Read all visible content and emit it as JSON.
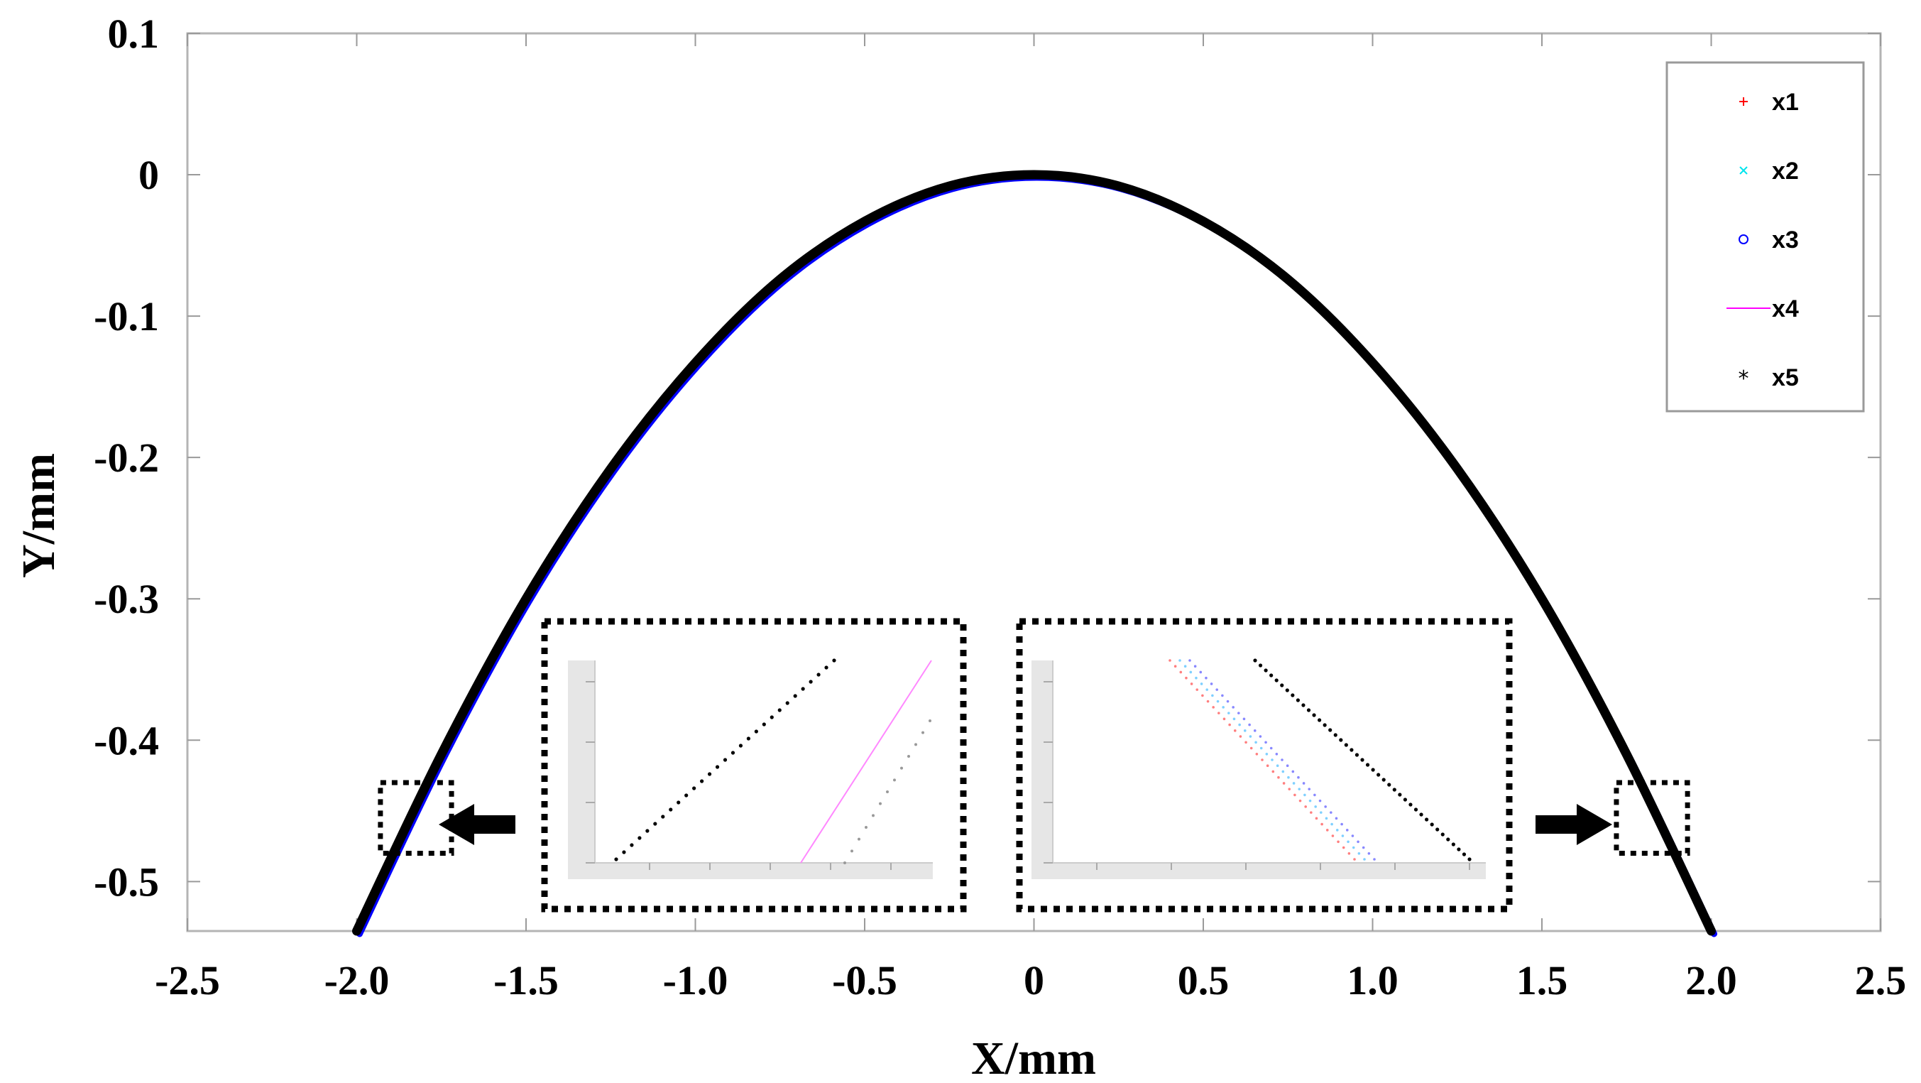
{
  "chart_data": {
    "type": "scatter",
    "title": "",
    "xlabel": "X/mm",
    "ylabel": "Y/mm",
    "xlim": [
      -2.5,
      2.5
    ],
    "ylim": [
      -0.535,
      0.1
    ],
    "x_ticks": [
      -2.5,
      -2.0,
      -1.5,
      -1.0,
      -0.5,
      0,
      0.5,
      1.0,
      1.5,
      2.0,
      2.5
    ],
    "x_tick_labels": [
      "-2.5",
      "-2.0",
      "-1.5",
      "-1.0",
      "-0.5",
      "0",
      "0.5",
      "1.0",
      "1.5",
      "2.0",
      "2.5"
    ],
    "y_ticks": [
      0.1,
      0,
      -0.1,
      -0.2,
      -0.3,
      -0.4,
      -0.5
    ],
    "y_tick_labels": [
      "0.1",
      "0",
      "-0.1",
      "-0.2",
      "-0.3",
      "-0.4",
      "-0.5"
    ],
    "grid": false,
    "legend_position": "top-right",
    "series": [
      {
        "name": "x1",
        "marker": "+",
        "color": "#ff0000",
        "x": [
          -2.0,
          -1.75,
          -1.5,
          -1.25,
          -1.0,
          -0.75,
          -0.5,
          -0.25,
          0,
          0.25,
          0.5,
          0.75,
          1.0,
          1.25,
          1.5,
          1.75,
          2.0
        ],
        "y": [
          -0.535,
          -0.41,
          -0.3,
          -0.208,
          -0.133,
          -0.074,
          -0.033,
          -0.008,
          0,
          -0.008,
          -0.033,
          -0.074,
          -0.133,
          -0.208,
          -0.3,
          -0.41,
          -0.535
        ]
      },
      {
        "name": "x2",
        "marker": "x",
        "color": "#00e5ee",
        "x": [
          -2.0,
          -1.75,
          -1.5,
          -1.25,
          -1.0,
          -0.75,
          -0.5,
          -0.25,
          0,
          0.25,
          0.5,
          0.75,
          1.0,
          1.25,
          1.5,
          1.75,
          2.0
        ],
        "y": [
          -0.535,
          -0.41,
          -0.3,
          -0.208,
          -0.133,
          -0.074,
          -0.033,
          -0.008,
          0,
          -0.008,
          -0.033,
          -0.074,
          -0.133,
          -0.208,
          -0.3,
          -0.41,
          -0.535
        ]
      },
      {
        "name": "x3",
        "marker": "o",
        "color": "#0000ff",
        "x": [
          -2.0,
          -1.75,
          -1.5,
          -1.25,
          -1.0,
          -0.75,
          -0.5,
          -0.25,
          0,
          0.25,
          0.5,
          0.75,
          1.0,
          1.25,
          1.5,
          1.75,
          2.0
        ],
        "y": [
          -0.535,
          -0.41,
          -0.3,
          -0.208,
          -0.133,
          -0.074,
          -0.033,
          -0.008,
          0,
          -0.008,
          -0.033,
          -0.074,
          -0.133,
          -0.208,
          -0.3,
          -0.41,
          -0.535
        ]
      },
      {
        "name": "x4",
        "marker": "-",
        "color": "#ff00ff",
        "x": [
          -2.0,
          -1.75,
          -1.5,
          -1.25,
          -1.0,
          -0.75,
          -0.5,
          -0.25,
          0,
          0.25,
          0.5,
          0.75,
          1.0,
          1.25,
          1.5,
          1.75,
          2.0
        ],
        "y": [
          -0.535,
          -0.41,
          -0.3,
          -0.208,
          -0.133,
          -0.074,
          -0.033,
          -0.008,
          0,
          -0.008,
          -0.033,
          -0.074,
          -0.133,
          -0.208,
          -0.3,
          -0.41,
          -0.535
        ]
      },
      {
        "name": "x5",
        "marker": "*",
        "color": "#000000",
        "x": [
          -2.0,
          -1.75,
          -1.5,
          -1.25,
          -1.0,
          -0.75,
          -0.5,
          -0.25,
          0,
          0.25,
          0.5,
          0.75,
          1.0,
          1.25,
          1.5,
          1.75,
          2.0
        ],
        "y": [
          -0.535,
          -0.41,
          -0.3,
          -0.208,
          -0.133,
          -0.074,
          -0.033,
          -0.008,
          0,
          -0.008,
          -0.033,
          -0.074,
          -0.133,
          -0.208,
          -0.3,
          -0.41,
          -0.535
        ]
      }
    ],
    "zoom_regions": [
      {
        "side": "left",
        "xlim": [
          -1.93,
          -1.72
        ],
        "ylim": [
          -0.48,
          -0.43
        ]
      },
      {
        "side": "right",
        "xlim": [
          1.72,
          1.93
        ],
        "ylim": [
          -0.48,
          -0.43
        ]
      }
    ]
  }
}
